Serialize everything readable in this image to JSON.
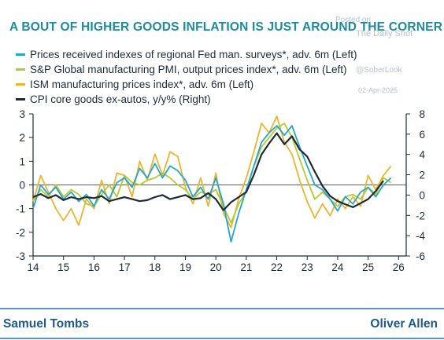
{
  "title": "A BOUT OF HIGHER GOODS INFLATION IS JUST AROUND THE CORNER",
  "watermark": {
    "posted_on": "Posted on",
    "source": "The Daily Shot",
    "date": "02-Apr-2025",
    "brand": "@SoberLook"
  },
  "footer": {
    "left": "Samuel Tombs",
    "right": "Oliver Allen"
  },
  "chart_data": {
    "type": "line",
    "title": "A BOUT OF HIGHER GOODS INFLATION IS JUST AROUND THE CORNER",
    "x_range": [
      2014.0,
      2026.25
    ],
    "x_ticks": [
      "14",
      "15",
      "16",
      "17",
      "18",
      "19",
      "20",
      "21",
      "22",
      "23",
      "24",
      "25",
      "26"
    ],
    "y_left": {
      "range": [
        -3,
        3
      ],
      "ticks": [
        "3",
        "2",
        "1",
        "0",
        "-1",
        "-2",
        "-3"
      ]
    },
    "y_right": {
      "range": [
        -6,
        8
      ],
      "ticks": [
        "8",
        "6",
        "4",
        "2",
        "0",
        "-2",
        "-4",
        "-6"
      ]
    },
    "grid": false,
    "legend_position": "top-left",
    "series": [
      {
        "name": "Prices received indexes of regional Fed man. surveys*, adv. 6m (Left)",
        "axis": "left",
        "color": "#27a6cc",
        "x": [
          2014.0,
          2014.25,
          2014.5,
          2014.75,
          2015.0,
          2015.25,
          2015.5,
          2015.75,
          2016.0,
          2016.25,
          2016.5,
          2016.75,
          2017.0,
          2017.25,
          2017.5,
          2017.75,
          2018.0,
          2018.25,
          2018.5,
          2018.75,
          2019.0,
          2019.25,
          2019.5,
          2019.75,
          2020.0,
          2020.25,
          2020.5,
          2020.75,
          2021.0,
          2021.25,
          2021.5,
          2021.75,
          2022.0,
          2022.25,
          2022.5,
          2022.75,
          2023.0,
          2023.25,
          2023.5,
          2023.75,
          2024.0,
          2024.25,
          2024.5,
          2024.75,
          2025.0,
          2025.25,
          2025.5,
          2025.75
        ],
        "y": [
          -1.0,
          0.0,
          -0.4,
          -0.1,
          -0.6,
          -0.3,
          -0.7,
          -0.4,
          -0.9,
          -0.2,
          -0.6,
          0.1,
          0.3,
          -0.1,
          0.7,
          0.3,
          0.9,
          0.3,
          0.8,
          0.6,
          0.2,
          -0.5,
          -0.1,
          -0.6,
          0.3,
          -0.8,
          -2.4,
          -1.2,
          -0.2,
          0.8,
          1.8,
          2.2,
          2.5,
          2.1,
          2.5,
          1.6,
          0.8,
          0.0,
          -0.2,
          -0.6,
          -1.1,
          -0.5,
          -0.8,
          -0.3,
          -0.1,
          -0.5,
          0.0,
          0.3
        ]
      },
      {
        "name": "S&P Global manufacturing PMI, output prices index*, adv. 6m (Left)",
        "axis": "left",
        "color": "#b5c930",
        "x": [
          2014.0,
          2014.25,
          2014.5,
          2014.75,
          2015.0,
          2015.25,
          2015.5,
          2015.75,
          2016.0,
          2016.25,
          2016.5,
          2016.75,
          2017.0,
          2017.25,
          2017.5,
          2017.75,
          2018.0,
          2018.25,
          2018.5,
          2018.75,
          2019.0,
          2019.25,
          2019.5,
          2019.75,
          2020.0,
          2020.25,
          2020.5,
          2020.75,
          2021.0,
          2021.25,
          2021.5,
          2021.75,
          2022.0,
          2022.25,
          2022.5,
          2022.75,
          2023.0,
          2023.25,
          2023.5,
          2023.75,
          2024.0,
          2024.25,
          2024.5,
          2024.75,
          2025.0,
          2025.25,
          2025.5,
          2025.75
        ],
        "y": [
          -0.7,
          -0.2,
          -0.5,
          0.0,
          -0.5,
          -0.2,
          -0.4,
          -0.8,
          -0.9,
          -0.4,
          0.0,
          -0.5,
          0.4,
          0.1,
          0.0,
          0.2,
          0.3,
          0.5,
          0.3,
          0.0,
          -0.2,
          -0.6,
          -0.3,
          -0.4,
          -0.2,
          -0.9,
          -1.6,
          -0.8,
          -0.3,
          0.8,
          1.6,
          2.0,
          2.4,
          2.6,
          2.0,
          1.1,
          0.2,
          -0.6,
          -0.3,
          -0.6,
          -0.9,
          -0.5,
          -0.4,
          -0.6,
          -0.1,
          -0.4,
          0.3,
          0.1
        ]
      },
      {
        "name": "ISM manufacturing prices index*, adv. 6m (Left)",
        "axis": "left",
        "color": "#eab530",
        "x": [
          2014.0,
          2014.25,
          2014.5,
          2014.75,
          2015.0,
          2015.25,
          2015.5,
          2015.75,
          2016.0,
          2016.25,
          2016.5,
          2016.75,
          2017.0,
          2017.25,
          2017.5,
          2017.75,
          2018.0,
          2018.25,
          2018.5,
          2018.75,
          2019.0,
          2019.25,
          2019.5,
          2019.75,
          2020.0,
          2020.25,
          2020.5,
          2020.75,
          2021.0,
          2021.25,
          2021.5,
          2021.75,
          2022.0,
          2022.25,
          2022.5,
          2022.75,
          2023.0,
          2023.25,
          2023.5,
          2023.75,
          2024.0,
          2024.25,
          2024.5,
          2024.75,
          2025.0,
          2025.25,
          2025.5,
          2025.75
        ],
        "y": [
          -0.7,
          0.4,
          -0.3,
          -1.0,
          -1.5,
          -1.0,
          -1.7,
          -0.6,
          -1.0,
          0.2,
          -0.8,
          0.5,
          0.4,
          -0.5,
          1.0,
          0.2,
          1.3,
          0.4,
          1.4,
          1.2,
          -0.1,
          -0.8,
          0.3,
          -0.9,
          0.5,
          -1.2,
          -1.8,
          -0.6,
          0.3,
          1.4,
          2.6,
          2.2,
          2.9,
          1.8,
          1.3,
          0.2,
          -0.7,
          -1.4,
          -0.8,
          -1.3,
          -0.6,
          -1.0,
          -0.5,
          -0.9,
          0.4,
          -0.2,
          0.4,
          0.8
        ]
      },
      {
        "name": "CPI core goods ex-autos, y/y% (Right)",
        "axis": "right",
        "color": "#1e2a36",
        "x": [
          2014.0,
          2014.25,
          2014.5,
          2014.75,
          2015.0,
          2015.25,
          2015.5,
          2015.75,
          2016.0,
          2016.25,
          2016.5,
          2016.75,
          2017.0,
          2017.25,
          2017.5,
          2017.75,
          2018.0,
          2018.25,
          2018.5,
          2018.75,
          2019.0,
          2019.25,
          2019.5,
          2019.75,
          2020.0,
          2020.25,
          2020.5,
          2020.75,
          2021.0,
          2021.25,
          2021.5,
          2021.75,
          2022.0,
          2022.25,
          2022.5,
          2022.75,
          2023.0,
          2023.25,
          2023.5,
          2023.75,
          2024.0,
          2024.25,
          2024.5,
          2024.75,
          2025.0,
          2025.25,
          2025.5
        ],
        "y": [
          -0.2,
          0.1,
          -0.3,
          0.0,
          -0.5,
          -0.2,
          -0.4,
          -0.2,
          -0.3,
          -0.1,
          -0.6,
          -0.4,
          -0.2,
          -0.4,
          -0.6,
          -0.5,
          -0.2,
          0.0,
          -0.4,
          -0.2,
          0.0,
          -0.4,
          -0.3,
          0.2,
          -0.4,
          -1.5,
          -0.7,
          -0.2,
          0.3,
          2.0,
          4.0,
          5.1,
          6.1,
          5.0,
          5.8,
          4.5,
          3.8,
          2.3,
          0.9,
          -0.1,
          -0.6,
          -0.9,
          -1.2,
          -0.8,
          -0.4,
          0.4,
          1.4
        ]
      }
    ]
  }
}
